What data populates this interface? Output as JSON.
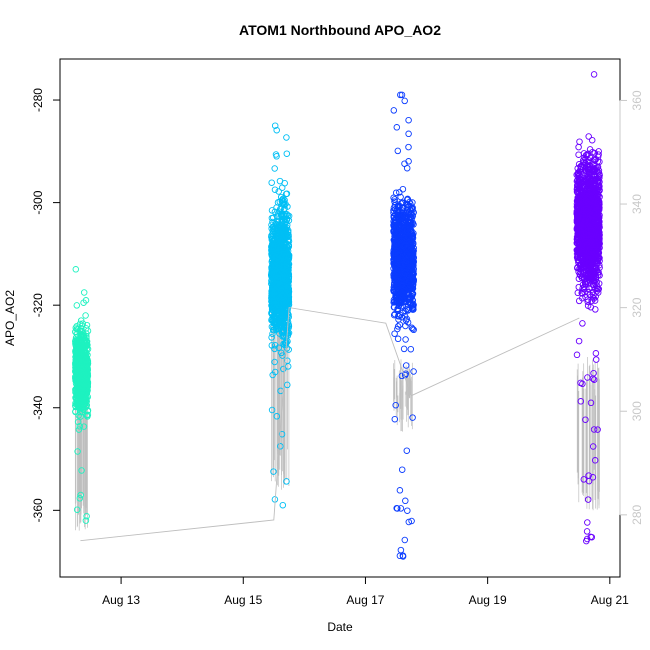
{
  "chart_data": {
    "type": "scatter",
    "title": "ATOM1 Northbound APO_AO2",
    "xlabel": "Date",
    "ylabel": "APO_AO2",
    "x_ticks": [
      "Aug 13",
      "Aug 15",
      "Aug 17",
      "Aug 19",
      "Aug 21"
    ],
    "y_ticks": [
      -280,
      -300,
      -320,
      -340,
      -360
    ],
    "y_ticks_right": [
      360,
      340,
      320,
      300,
      280
    ],
    "xlim": [
      "2023-08-12 00:00",
      "2023-08-21 04:00"
    ],
    "ylim": [
      -373,
      -272
    ],
    "ylim_right": [
      268,
      368
    ],
    "grid": false,
    "series": [
      {
        "color": "#1ef2c0",
        "x_range": [
          "2023-08-12 06:00",
          "2023-08-12 11:00"
        ],
        "y_center": -333,
        "y_spread": 7,
        "y_min": -362,
        "y_max": -313,
        "n": 700
      },
      {
        "color": "#00bff5",
        "x_range": [
          "2023-08-15 11:00",
          "2023-08-15 18:00"
        ],
        "y_center": -314,
        "y_spread": 11,
        "y_min": -359,
        "y_max": -285,
        "n": 1200
      },
      {
        "color": "#0a3cff",
        "x_range": [
          "2023-08-17 11:00",
          "2023-08-17 19:00"
        ],
        "y_center": -311,
        "y_spread": 9,
        "y_min": -369,
        "y_max": -279,
        "n": 1200
      },
      {
        "color": "#6a00ff",
        "x_range": [
          "2023-08-20 11:00",
          "2023-08-20 20:00"
        ],
        "y_center": -304,
        "y_spread": 11,
        "y_min": -366,
        "y_max": -275,
        "n": 1400
      }
    ],
    "connector_line": {
      "color": "#bebebe",
      "points": [
        {
          "x": "2023-08-12 08:00",
          "y_right": 275
        },
        {
          "x": "2023-08-15 12:00",
          "y_right": 279
        },
        {
          "x": "2023-08-15 18:00",
          "y_right": 320
        },
        {
          "x": "2023-08-17 08:00",
          "y_right": 317
        },
        {
          "x": "2023-08-17 18:00",
          "y_right": 303
        },
        {
          "x": "2023-08-20 12:00",
          "y_right": 318
        }
      ],
      "vertical_whiskers": [
        {
          "x_range": [
            "2023-08-12 06:00",
            "2023-08-12 11:00"
          ],
          "y_low": -364,
          "y_high": -332
        },
        {
          "x_range": [
            "2023-08-15 11:00",
            "2023-08-15 18:00"
          ],
          "y_low": -356,
          "y_high": -320
        },
        {
          "x_range": [
            "2023-08-17 11:00",
            "2023-08-17 19:00"
          ],
          "y_low": -345,
          "y_high": -330
        },
        {
          "x_range": [
            "2023-08-20 11:00",
            "2023-08-20 20:00"
          ],
          "y_low": -360,
          "y_high": -330
        }
      ]
    }
  }
}
